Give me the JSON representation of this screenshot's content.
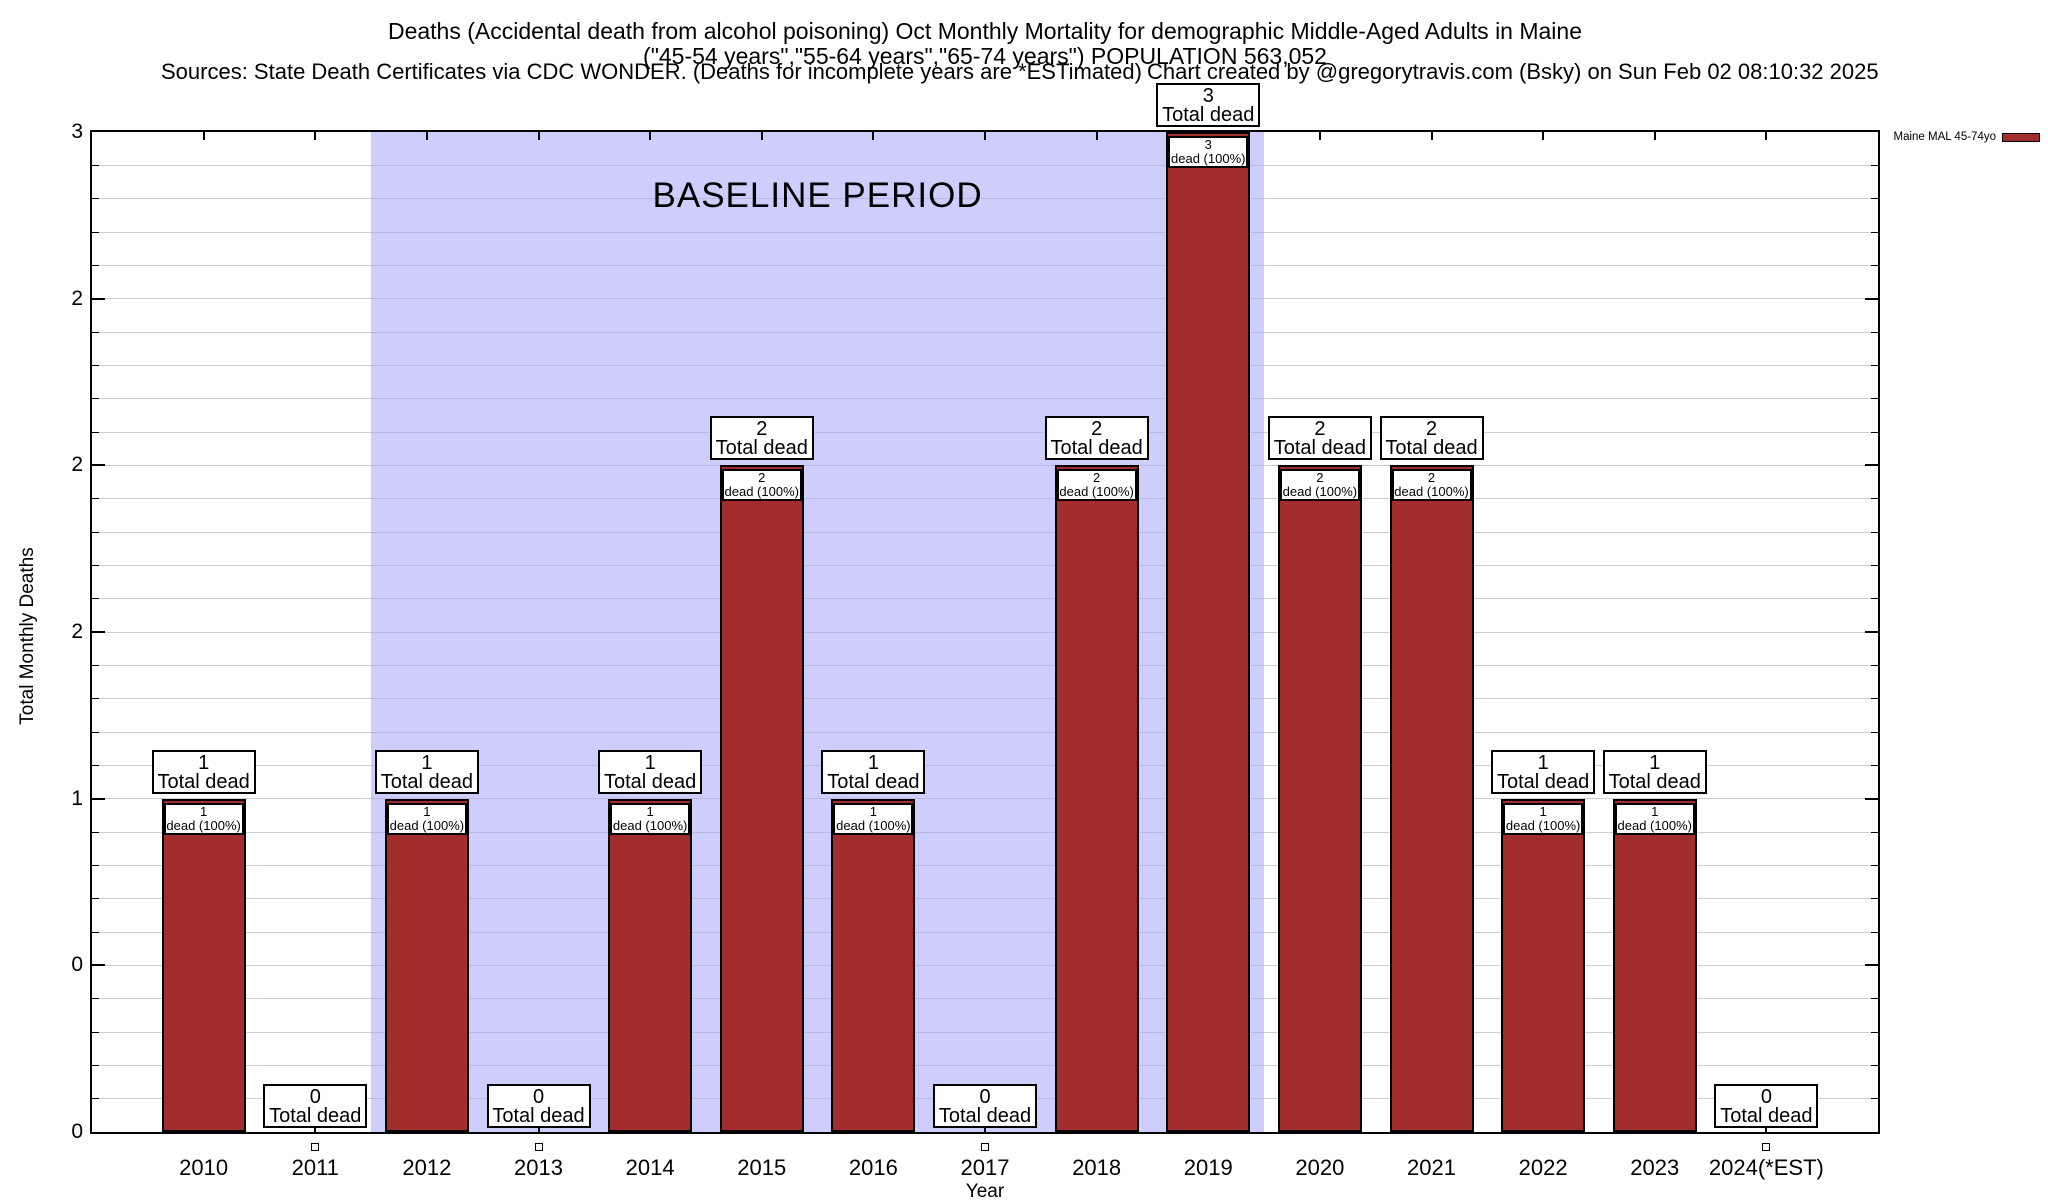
{
  "header": {
    "title_line1": "Deaths (Accidental death from alcohol poisoning) Oct Monthly Mortality for demographic Middle-Aged Adults in Maine",
    "title_line2": "(\"45-54 years\",\"55-64 years\",\"65-74 years\") POPULATION 563,052",
    "sources": "Sources: State Death Certificates via CDC WONDER. (Deaths for incomplete years are *ESTimated)",
    "credit": "Chart created by @gregorytravis.com (Bsky) on Sun Feb 02 08:10:32 2025"
  },
  "legend": {
    "label": "Maine MAL 45-74yo",
    "swatch_color": "#a32d2d"
  },
  "chart_data": {
    "type": "bar",
    "title": "Deaths (Accidental death from alcohol poisoning) Oct Monthly Mortality for demographic Middle-Aged Adults in Maine",
    "xlabel": "Year",
    "ylabel": "Total Monthly Deaths",
    "ylim": [
      0,
      3
    ],
    "grid": true,
    "grid_color": "#cfcfcf",
    "minor_grid_step": 0.1,
    "yticks": [
      {
        "value": 0,
        "label": "0"
      },
      {
        "value": 0.5,
        "label": "0"
      },
      {
        "value": 1,
        "label": "1"
      },
      {
        "value": 1.5,
        "label": "2"
      },
      {
        "value": 2,
        "label": "2"
      },
      {
        "value": 2.5,
        "label": "2"
      },
      {
        "value": 3,
        "label": "3"
      }
    ],
    "categories": [
      "2010",
      "2011",
      "2012",
      "2013",
      "2014",
      "2015",
      "2016",
      "2017",
      "2018",
      "2019",
      "2020",
      "2021",
      "2022",
      "2023",
      "2024(*EST)"
    ],
    "values": [
      1,
      0,
      1,
      0,
      1,
      2,
      1,
      0,
      2,
      3,
      2,
      2,
      1,
      1,
      0
    ],
    "series_name": "Maine MAL 45-74yo",
    "bar_color": "#a32d2d",
    "bar_border_color": "#000000",
    "baseline_region": {
      "label": "BASELINE PERIOD",
      "from_index": 2,
      "to_index": 9,
      "color": "#a5a5fa",
      "opacity": 0.55
    },
    "bar_top_label_lines": [
      "{value}",
      "Total dead"
    ],
    "bar_inner_label_lines": [
      "{value}",
      "dead (100%)"
    ]
  }
}
